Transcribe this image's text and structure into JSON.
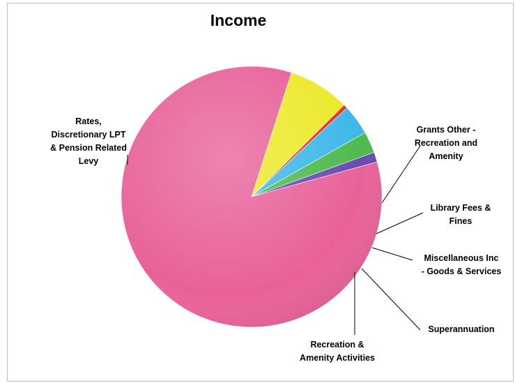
{
  "chart_data": {
    "type": "pie",
    "title": "Income",
    "slices": [
      {
        "label": "Rates, Discretionary LPT & Pension Related Levy",
        "value": 83.0,
        "color": "#e8629a"
      },
      {
        "label": "Grants Other - Recreation and Amenity",
        "value": 7.5,
        "color": "#ece92c"
      },
      {
        "label": "Library Fees & Fines",
        "value": 0.5,
        "color": "#e4322c"
      },
      {
        "label": "Miscellaneous Inc - Goods & Services",
        "value": 3.7,
        "color": "#3fb8e8"
      },
      {
        "label": "Superannuation",
        "value": 2.6,
        "color": "#4fba50"
      },
      {
        "label": "Recreation & Amenity Activities",
        "value": 1.2,
        "color": "#6a4bb0"
      }
    ],
    "start_angle_deg": -15.5,
    "direction": "clockwise",
    "label_lines": [
      [
        "Rates,",
        "Discretionary LPT",
        "& Pension Related",
        "Levy"
      ],
      [
        "Grants Other -",
        "Recreation and",
        "Amenity"
      ],
      [
        "Library Fees &",
        "Fines"
      ],
      [
        "Miscellaneous Inc",
        "- Goods & Services"
      ],
      [
        "Superannuation"
      ],
      [
        "Recreation &",
        "Amenity Activities"
      ]
    ]
  }
}
